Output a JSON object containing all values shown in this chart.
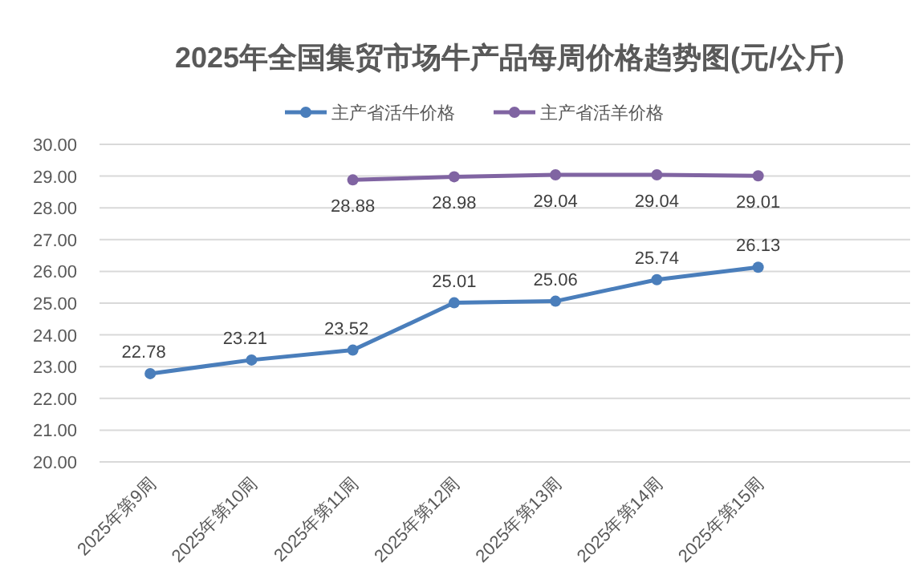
{
  "chart_data": {
    "type": "line",
    "title": "2025年全国集贸市场牛产品每周价格趋势图(元/公斤)",
    "categories": [
      "2025年第9周",
      "2025年第10周",
      "2025年第11周",
      "2025年第12周",
      "2025年第13周",
      "2025年第14周",
      "2025年第15周",
      null
    ],
    "series": [
      {
        "name": "主产省活牛价格",
        "color": "#4a7ebb",
        "values": [
          22.78,
          23.21,
          23.52,
          25.01,
          25.06,
          25.74,
          26.13,
          null
        ]
      },
      {
        "name": "主产省活羊价格",
        "color": "#8064a2",
        "values": [
          null,
          null,
          28.88,
          28.98,
          29.04,
          29.04,
          29.01,
          null
        ]
      }
    ],
    "ylim": [
      20,
      30
    ],
    "yticks": [
      {
        "value": 20,
        "label": "20.00"
      },
      {
        "value": 21,
        "label": "21.00"
      },
      {
        "value": 22,
        "label": "22.00"
      },
      {
        "value": 23,
        "label": "23.00"
      },
      {
        "value": 24,
        "label": "24.00"
      },
      {
        "value": 25,
        "label": "25.00"
      },
      {
        "value": 26,
        "label": "26.00"
      },
      {
        "value": 27,
        "label": "27.00"
      },
      {
        "value": 28,
        "label": "28.00"
      },
      {
        "value": 29,
        "label": "29.00"
      },
      {
        "value": 30,
        "label": "30.00"
      }
    ],
    "grid": "y",
    "legend": "top",
    "marker": "circle",
    "data_labels": true
  }
}
